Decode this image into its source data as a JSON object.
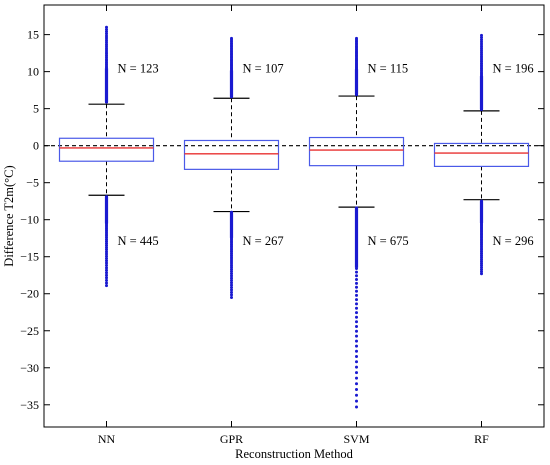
{
  "chart_data": {
    "type": "box",
    "xlabel": "Reconstruction Method",
    "ylabel": "Difference T2m(°C)",
    "ylim": [
      -38,
      19
    ],
    "yticks": [
      -35,
      -30,
      -25,
      -20,
      -15,
      -10,
      -5,
      0,
      5,
      10,
      15
    ],
    "reference_line": 0,
    "categories": [
      "NN",
      "GPR",
      "SVM",
      "RF"
    ],
    "colors": {
      "box": "#4a5ae8",
      "median": "#e83030",
      "whisker": "#000000",
      "outlier": "#1a1ad0",
      "reference": "#000000"
    },
    "boxes": [
      {
        "name": "NN",
        "whisker_high": 5.6,
        "q3": 1.0,
        "median": -0.3,
        "q1": -2.1,
        "whisker_low": -6.7,
        "outliers_high": {
          "min": 5.9,
          "max": 16.0,
          "count_label": "N = 123"
        },
        "outliers_low": {
          "min": -18.9,
          "max": -6.9,
          "count_label": "N = 445"
        }
      },
      {
        "name": "GPR",
        "whisker_high": 6.4,
        "q3": 0.7,
        "median": -1.1,
        "q1": -3.2,
        "whisker_low": -8.9,
        "outliers_high": {
          "min": 6.6,
          "max": 14.5,
          "count_label": "N = 107"
        },
        "outliers_low": {
          "min": -20.5,
          "max": -9.0,
          "count_label": "N = 267"
        }
      },
      {
        "name": "SVM",
        "whisker_high": 6.7,
        "q3": 1.1,
        "median": -0.6,
        "q1": -2.7,
        "whisker_low": -8.3,
        "outliers_high": {
          "min": 6.9,
          "max": 14.5,
          "count_label": "N = 115"
        },
        "outliers_low": {
          "min": -35.3,
          "max": -8.4,
          "count_label": "N = 675"
        }
      },
      {
        "name": "RF",
        "whisker_high": 4.7,
        "q3": 0.3,
        "median": -1.0,
        "q1": -2.8,
        "whisker_low": -7.3,
        "outliers_high": {
          "min": 4.9,
          "max": 14.9,
          "count_label": "N = 196"
        },
        "outliers_low": {
          "min": -17.3,
          "max": -7.5,
          "count_label": "N = 296"
        }
      }
    ]
  }
}
